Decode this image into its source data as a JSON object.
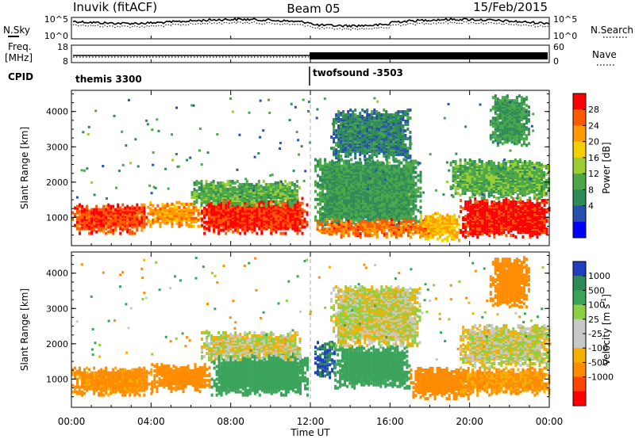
{
  "header": {
    "station": "Inuvik (fitACF)",
    "beam": "Beam 05",
    "date": "15/Feb/2015"
  },
  "noise_panel": {
    "left_label": "N.Sky",
    "right_label": "N.Search",
    "left_ticks": [
      "10^5",
      "10^0"
    ],
    "right_ticks": [
      "10^5",
      "10^0"
    ]
  },
  "freq_panel": {
    "left_label_1": "Freq.",
    "left_label_2": "[MHz]",
    "right_label": "Nave",
    "left_ticks": [
      "18",
      "8"
    ],
    "right_ticks": [
      "60",
      "0"
    ]
  },
  "cpid_panel": {
    "label": "CPID",
    "segments": [
      {
        "name": "themis 3300",
        "start_hour": 0
      },
      {
        "name": "twofsound -3503",
        "start_hour": 12
      }
    ]
  },
  "x_axis": {
    "label": "Time UT",
    "ticks": [
      "00:00",
      "04:00",
      "08:00",
      "12:00",
      "16:00",
      "20:00",
      "00:00"
    ],
    "range_hours": [
      0,
      24
    ]
  },
  "power_colorbar": {
    "label": "Power [dB]",
    "ticks": [
      "28",
      "24",
      "20",
      "16",
      "12",
      "8",
      "4"
    ],
    "colors": [
      "#ff0000",
      "#ff5a00",
      "#ff9a00",
      "#f5d000",
      "#9acd32",
      "#4aa84a",
      "#2e8b57",
      "#2850b0",
      "#0000ff"
    ]
  },
  "velocity_colorbar": {
    "label": "Velocity [m s",
    "label_sup": "-1",
    "label_end": "]",
    "ticks": [
      "1000",
      "500",
      "100",
      "25",
      "-25",
      "-100",
      "-500",
      "-1000"
    ],
    "colors": [
      "#1f3fbf",
      "#2e8b57",
      "#3aa35a",
      "#8ad040",
      "#c8c8c8",
      "#c8c8c8",
      "#f5b000",
      "#ff8c00",
      "#ff4500",
      "#ff0000"
    ]
  },
  "chart_data": [
    {
      "type": "heatmap",
      "panel": "power",
      "ylabel": "Slant Range [km]",
      "xlabel": "Time UT",
      "xlim": [
        0,
        24
      ],
      "ylim": [
        200,
        4600
      ],
      "yticks": [
        1000,
        2000,
        3000,
        4000
      ],
      "zlim": [
        0,
        30
      ],
      "units": "dB",
      "blobs": [
        {
          "t0": 0.0,
          "t1": 3.8,
          "r0": 500,
          "r1": 1350,
          "v": 26
        },
        {
          "t0": 3.8,
          "t1": 6.5,
          "r0": 700,
          "r1": 1400,
          "v": 22
        },
        {
          "t0": 6.5,
          "t1": 11.8,
          "r0": 500,
          "r1": 1500,
          "v": 27
        },
        {
          "t0": 6.0,
          "t1": 11.5,
          "r0": 1300,
          "r1": 2000,
          "v": 12
        },
        {
          "t0": 12.2,
          "t1": 17.5,
          "r0": 700,
          "r1": 2600,
          "v": 10
        },
        {
          "t0": 13.0,
          "t1": 17.0,
          "r0": 2600,
          "r1": 4000,
          "v": 8
        },
        {
          "t0": 12.3,
          "t1": 18.0,
          "r0": 400,
          "r1": 900,
          "v": 24
        },
        {
          "t0": 17.5,
          "t1": 19.5,
          "r0": 300,
          "r1": 1100,
          "v": 20
        },
        {
          "t0": 19.5,
          "t1": 24.0,
          "r0": 400,
          "r1": 1500,
          "v": 28
        },
        {
          "t0": 19.0,
          "t1": 24.0,
          "r0": 1500,
          "r1": 2600,
          "v": 12
        },
        {
          "t0": 21.0,
          "t1": 23.0,
          "r0": 3000,
          "r1": 4400,
          "v": 10
        }
      ]
    },
    {
      "type": "heatmap",
      "panel": "velocity",
      "ylabel": "Slant Range [km]",
      "xlabel": "Time UT",
      "xlim": [
        0,
        24
      ],
      "ylim": [
        200,
        4600
      ],
      "yticks": [
        1000,
        2000,
        3000,
        4000
      ],
      "zlim": [
        -1000,
        1000
      ],
      "units": "m s-1",
      "blobs": [
        {
          "t0": 0.0,
          "t1": 4.0,
          "r0": 500,
          "r1": 1300,
          "v": -150
        },
        {
          "t0": 4.0,
          "t1": 7.0,
          "r0": 600,
          "r1": 1400,
          "v": -300
        },
        {
          "t0": 7.0,
          "t1": 11.8,
          "r0": 500,
          "r1": 1700,
          "v": 300
        },
        {
          "t0": 6.5,
          "t1": 11.5,
          "r0": 1500,
          "r1": 2300,
          "v": 0
        },
        {
          "t0": 12.2,
          "t1": 13.2,
          "r0": 1000,
          "r1": 2000,
          "v": 1000
        },
        {
          "t0": 13.2,
          "t1": 17.0,
          "r0": 700,
          "r1": 1900,
          "v": 200
        },
        {
          "t0": 13.0,
          "t1": 17.5,
          "r0": 1900,
          "r1": 3600,
          "v": 0
        },
        {
          "t0": 17.0,
          "t1": 20.0,
          "r0": 400,
          "r1": 1300,
          "v": -200
        },
        {
          "t0": 19.5,
          "t1": 24.0,
          "r0": 500,
          "r1": 1300,
          "v": -120
        },
        {
          "t0": 19.5,
          "t1": 24.0,
          "r0": 1300,
          "r1": 2500,
          "v": 0
        },
        {
          "t0": 21.0,
          "t1": 23.0,
          "r0": 3000,
          "r1": 4400,
          "v": -300
        }
      ]
    }
  ]
}
